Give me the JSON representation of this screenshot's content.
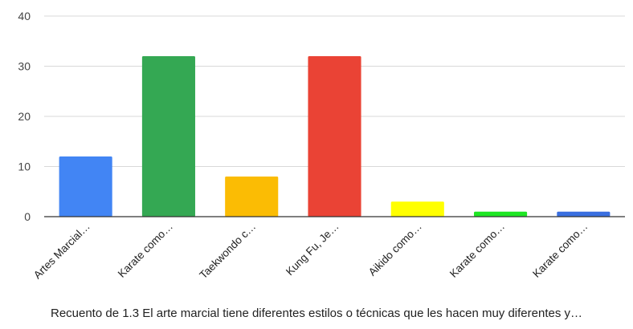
{
  "chart_data": {
    "type": "bar",
    "categories": [
      "Artes Marcial…",
      "Karate como…",
      "Taekwondo c…",
      "Kung Fu, Je…",
      "Aikido como…",
      "Karate como…",
      "Karate como…"
    ],
    "values": [
      12,
      32,
      8,
      32,
      3,
      1,
      1
    ],
    "colors": [
      "#4285f4",
      "#34a853",
      "#fbbc04",
      "#ea4335",
      "#ffff00",
      "#1ee624",
      "#3a6fe0"
    ],
    "ylim": [
      0,
      40
    ],
    "yticks": [
      0,
      10,
      20,
      30,
      40
    ],
    "xlabel": "Recuento de 1.3 El arte marcial tiene diferentes estilos o técnicas que les hacen muy diferentes y…",
    "grid": true,
    "legend": "none"
  }
}
